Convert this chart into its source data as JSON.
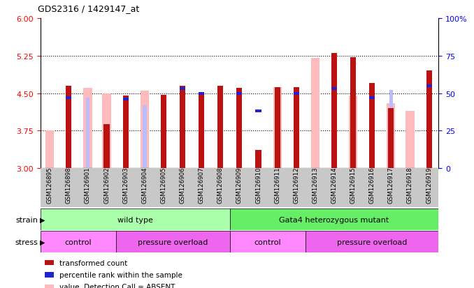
{
  "title": "GDS2316 / 1429147_at",
  "samples": [
    "GSM126895",
    "GSM126898",
    "GSM126901",
    "GSM126902",
    "GSM126903",
    "GSM126904",
    "GSM126905",
    "GSM126906",
    "GSM126907",
    "GSM126908",
    "GSM126909",
    "GSM126910",
    "GSM126911",
    "GSM126912",
    "GSM126913",
    "GSM126914",
    "GSM126915",
    "GSM126916",
    "GSM126917",
    "GSM126918",
    "GSM126919"
  ],
  "transformed_count": [
    null,
    4.65,
    null,
    3.88,
    4.45,
    null,
    4.47,
    4.65,
    4.5,
    4.65,
    4.6,
    3.37,
    4.62,
    4.62,
    null,
    5.3,
    5.22,
    4.7,
    4.2,
    null,
    4.95
  ],
  "percentile_rank": [
    null,
    47,
    null,
    null,
    46,
    null,
    null,
    53,
    50,
    null,
    50,
    38,
    null,
    50,
    null,
    53,
    null,
    47,
    null,
    null,
    55
  ],
  "absent_value": [
    3.76,
    null,
    4.6,
    4.5,
    null,
    4.55,
    null,
    null,
    null,
    null,
    null,
    null,
    4.62,
    null,
    5.2,
    null,
    4.45,
    null,
    4.3,
    4.15,
    null
  ],
  "absent_rank": [
    null,
    null,
    47,
    null,
    null,
    42,
    null,
    null,
    null,
    null,
    null,
    null,
    null,
    null,
    null,
    54,
    null,
    null,
    52,
    null,
    null
  ],
  "ylim_left": [
    3.0,
    6.0
  ],
  "ylim_right": [
    0,
    100
  ],
  "yticks_left": [
    3,
    3.75,
    4.5,
    5.25,
    6
  ],
  "yticks_right": [
    0,
    25,
    50,
    75,
    100
  ],
  "color_red": "#bb1111",
  "color_blue": "#2222cc",
  "color_pink": "#ffbbbb",
  "color_lightblue": "#bbbbff",
  "color_wild_green": "#aaffaa",
  "color_mutant_green": "#66ee66",
  "color_control_pink": "#ff88ff",
  "color_overload_purple": "#ee66ee",
  "background_gray": "#c8c8c8",
  "grid_dotted_color": "black",
  "spine_color": "black"
}
